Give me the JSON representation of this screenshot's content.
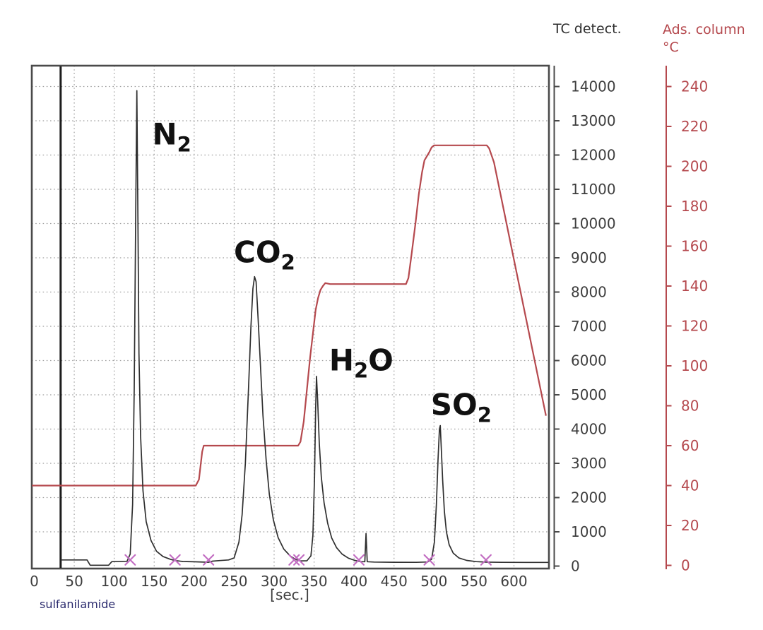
{
  "header": {
    "tc_axis_title": "TC detect.",
    "temp_axis_title_line1": "Ads. column",
    "temp_axis_title_line2": "°C"
  },
  "colors": {
    "trace": "#2f2f2f",
    "injection_line": "#1c1c1c",
    "temp_curve": "#b5494e",
    "temp_text": "#b5494e",
    "tc_text": "#3d3d3d",
    "grid": "#9e9e9e",
    "frame": "#4a4a4a",
    "marker": "#c26cc2",
    "peak_label": "#111111",
    "sample_text": "#2b2b6e"
  },
  "chart_data": {
    "type": "line",
    "title": "",
    "xlabel": "[sec.]",
    "sample_label": "sulfanilamide",
    "x_ticks": [
      0,
      50,
      100,
      150,
      200,
      250,
      300,
      350,
      400,
      450,
      500,
      550,
      600
    ],
    "xlim": [
      -3,
      643
    ],
    "grid": true,
    "left_axis": {
      "title": "TC detect.",
      "ticks": [
        0,
        1000,
        2000,
        3000,
        4000,
        5000,
        6000,
        7000,
        8000,
        9000,
        10000,
        11000,
        12000,
        13000,
        14000
      ],
      "lim": [
        0,
        14620
      ]
    },
    "right_axis": {
      "title": "Ads. column °C",
      "ticks": [
        0,
        20,
        40,
        60,
        80,
        100,
        120,
        140,
        160,
        180,
        200,
        220,
        240
      ],
      "lim": [
        0,
        243
      ]
    },
    "injection_line_sec": 33,
    "peak_boundary_markers_sec": [
      120,
      176,
      218,
      325,
      331,
      406,
      494,
      565
    ],
    "peaks": [
      {
        "formula": [
          [
            "N",
            false
          ],
          [
            "2",
            true
          ]
        ],
        "apex_sec": 128.3,
        "apex_value": 13880,
        "label_sec": 172,
        "label_value": 12600
      },
      {
        "formula": [
          [
            "CO",
            false
          ],
          [
            "2",
            true
          ]
        ],
        "apex_sec": 275.5,
        "apex_value": 8450,
        "label_sec": 288,
        "label_value": 9150
      },
      {
        "formula": [
          [
            "H",
            false
          ],
          [
            "2",
            true
          ],
          [
            "O",
            false
          ]
        ],
        "apex_sec": 353,
        "apex_value": 5540,
        "label_sec": 409,
        "label_value": 6000
      },
      {
        "formula": [
          [
            "SO",
            false
          ],
          [
            "2",
            true
          ]
        ],
        "apex_sec": 507.8,
        "apex_value": 4100,
        "label_sec": 534,
        "label_value": 4700
      }
    ],
    "series": [
      {
        "name": "tc-detector-signal",
        "axis": "left",
        "points": [
          [
            33,
            180
          ],
          [
            66,
            180
          ],
          [
            70,
            25
          ],
          [
            93,
            25
          ],
          [
            97,
            130
          ],
          [
            116,
            140
          ],
          [
            120,
            350
          ],
          [
            123,
            1800
          ],
          [
            125,
            5200
          ],
          [
            127,
            10500
          ],
          [
            128.3,
            13880
          ],
          [
            129.6,
            10200
          ],
          [
            131,
            6200
          ],
          [
            133,
            3800
          ],
          [
            136,
            2200
          ],
          [
            140,
            1300
          ],
          [
            146,
            750
          ],
          [
            153,
            430
          ],
          [
            161,
            280
          ],
          [
            170,
            200
          ],
          [
            176,
            160
          ],
          [
            186,
            135
          ],
          [
            200,
            125
          ],
          [
            213,
            115
          ],
          [
            218,
            112
          ],
          [
            223,
            145
          ],
          [
            232,
            160
          ],
          [
            243,
            180
          ],
          [
            250,
            240
          ],
          [
            256,
            700
          ],
          [
            260,
            1500
          ],
          [
            264,
            3000
          ],
          [
            268,
            5200
          ],
          [
            271,
            7000
          ],
          [
            273.5,
            8100
          ],
          [
            275.5,
            8450
          ],
          [
            277.5,
            8300
          ],
          [
            280,
            7200
          ],
          [
            283,
            5800
          ],
          [
            286,
            4400
          ],
          [
            290,
            3100
          ],
          [
            294,
            2100
          ],
          [
            299,
            1350
          ],
          [
            305,
            830
          ],
          [
            312,
            500
          ],
          [
            320,
            300
          ],
          [
            327,
            190
          ],
          [
            333,
            150
          ],
          [
            341,
            155
          ],
          [
            346,
            300
          ],
          [
            348.5,
            900
          ],
          [
            350.5,
            2600
          ],
          [
            352,
            4600
          ],
          [
            353,
            5540
          ],
          [
            354.5,
            4800
          ],
          [
            356.5,
            3600
          ],
          [
            359,
            2600
          ],
          [
            362.5,
            1850
          ],
          [
            367,
            1250
          ],
          [
            372,
            820
          ],
          [
            378,
            540
          ],
          [
            385,
            350
          ],
          [
            393,
            230
          ],
          [
            401,
            165
          ],
          [
            406,
            140
          ],
          [
            410,
            128
          ],
          [
            413.5,
            128
          ],
          [
            415,
            950
          ],
          [
            416.5,
            128
          ],
          [
            425,
            118
          ],
          [
            450,
            112
          ],
          [
            478,
            110
          ],
          [
            492,
            120
          ],
          [
            497,
            200
          ],
          [
            500.5,
            700
          ],
          [
            503,
            1800
          ],
          [
            505,
            3100
          ],
          [
            506.8,
            4000
          ],
          [
            507.8,
            4100
          ],
          [
            509,
            3500
          ],
          [
            510.8,
            2500
          ],
          [
            513,
            1600
          ],
          [
            515.5,
            1000
          ],
          [
            519,
            620
          ],
          [
            524,
            380
          ],
          [
            531,
            240
          ],
          [
            541,
            165
          ],
          [
            553,
            130
          ],
          [
            565,
            115
          ],
          [
            585,
            110
          ],
          [
            615,
            108
          ],
          [
            643,
            108
          ]
        ]
      },
      {
        "name": "adsorption-column-temperature",
        "axis": "right",
        "points": [
          [
            -3,
            40
          ],
          [
            202,
            40
          ],
          [
            206,
            43
          ],
          [
            208,
            50
          ],
          [
            210,
            57
          ],
          [
            212,
            60
          ],
          [
            330,
            60
          ],
          [
            333,
            62
          ],
          [
            337,
            72
          ],
          [
            341,
            88
          ],
          [
            345,
            104
          ],
          [
            349,
            118
          ],
          [
            352,
            128
          ],
          [
            355,
            134
          ],
          [
            358,
            138
          ],
          [
            361,
            140
          ],
          [
            364,
            141.5
          ],
          [
            370,
            141
          ],
          [
            465,
            141
          ],
          [
            468,
            144
          ],
          [
            472,
            156
          ],
          [
            477,
            172
          ],
          [
            481,
            186
          ],
          [
            485,
            197
          ],
          [
            488,
            203
          ],
          [
            491,
            205
          ],
          [
            494,
            207
          ],
          [
            497,
            209.5
          ],
          [
            500,
            210.5
          ],
          [
            566,
            210.5
          ],
          [
            569,
            209
          ],
          [
            575,
            202
          ],
          [
            640,
            75
          ]
        ]
      }
    ]
  }
}
